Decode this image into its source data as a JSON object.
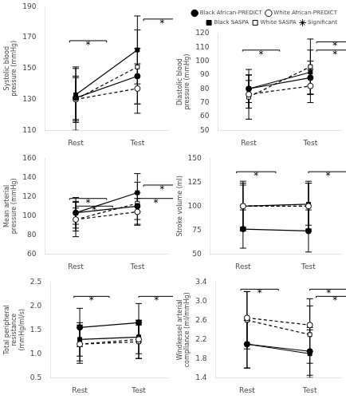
{
  "chart_data": [
    {
      "type": "line",
      "y_label": "Systolic blood pressure (mmHg)",
      "x": [
        0.1,
        0.6
      ],
      "xlim": [
        -0.15,
        0.85
      ],
      "xticks": [
        {
          "value": 0.1,
          "label": "Rest"
        },
        {
          "value": 0.6,
          "label": "Test"
        }
      ],
      "ylim": [
        110,
        190
      ],
      "yticks": [
        110,
        130,
        150,
        170,
        190
      ],
      "grid": false,
      "series": [
        {
          "name": "Black African-PREDICT",
          "values": [
            131,
            145
          ],
          "errors": [
            14,
            18
          ],
          "marker": "filled_circle",
          "line_style": "solid",
          "color": "black"
        },
        {
          "name": "White African-PREDICT",
          "values": [
            130,
            137
          ],
          "errors": [
            14,
            16
          ],
          "marker": "open_circle",
          "line_style": "dashed",
          "color": "black"
        },
        {
          "name": "Black SASPA",
          "values": [
            133,
            162
          ],
          "errors": [
            18,
            22
          ],
          "marker": "filled_square",
          "line_style": "solid",
          "color": "black"
        },
        {
          "name": "White SASPA",
          "values": [
            130,
            151
          ],
          "errors": [
            20,
            24
          ],
          "marker": "open_square",
          "line_style": "dashed",
          "color": "black"
        }
      ],
      "annotations": [
        {
          "x1": 0.05,
          "x2": 0.35,
          "y": 168,
          "text": "*"
        },
        {
          "x1": 0.65,
          "x2": 0.95,
          "y": 182,
          "text": "*"
        }
      ]
    },
    {
      "type": "line",
      "y_label": "Diastolic blood pressure (mmHg)",
      "x": [
        0.1,
        0.6
      ],
      "xlim": [
        -0.15,
        0.85
      ],
      "xticks": [
        {
          "value": 0.1,
          "label": "Rest"
        },
        {
          "value": 0.6,
          "label": "Test"
        }
      ],
      "ylim": [
        50,
        120
      ],
      "yticks": [
        50,
        60,
        70,
        80,
        90,
        100,
        110,
        120
      ],
      "grid": false,
      "legend": "top right",
      "series": [
        {
          "name": "Black African-PREDICT",
          "values": [
            80,
            88
          ],
          "errors": [
            10,
            12
          ],
          "marker": "filled_circle",
          "line_style": "solid",
          "color": "black"
        },
        {
          "name": "White African-PREDICT",
          "values": [
            76,
            82
          ],
          "errors": [
            10,
            12
          ],
          "marker": "open_circle",
          "line_style": "dashed",
          "color": "black"
        },
        {
          "name": "Black SASPA",
          "values": [
            80,
            92
          ],
          "errors": [
            14,
            16
          ],
          "marker": "filled_square",
          "line_style": "solid",
          "color": "black"
        },
        {
          "name": "White SASPA",
          "values": [
            74,
            96
          ],
          "errors": [
            16,
            20
          ],
          "marker": "open_square",
          "line_style": "dashed",
          "color": "black"
        },
        {
          "name": "Significant",
          "values": [
            null,
            null
          ],
          "marker": "star",
          "line_style": "none",
          "color": "black"
        }
      ],
      "annotations": [
        {
          "x1": 0.05,
          "x2": 0.35,
          "y": 108,
          "text": "*"
        },
        {
          "x1": 0.65,
          "x2": 0.95,
          "y": 114,
          "text": "*"
        },
        {
          "x1": 0.65,
          "x2": 0.95,
          "y": 108,
          "text": "*"
        }
      ]
    },
    {
      "type": "line",
      "y_label": "Mean arterial pressure (mmHg)",
      "x": [
        0.1,
        0.6
      ],
      "xlim": [
        -0.15,
        0.85
      ],
      "xticks": [
        {
          "value": 0.1,
          "label": "Rest"
        },
        {
          "value": 0.6,
          "label": "Test"
        }
      ],
      "ylim": [
        60,
        160
      ],
      "yticks": [
        60,
        80,
        100,
        120,
        140,
        160
      ],
      "grid": false,
      "series": [
        {
          "name": "Black African-PREDICT",
          "values": [
            103,
            110
          ],
          "errors": [
            12,
            14
          ],
          "marker": "filled_circle",
          "line_style": "solid",
          "color": "black"
        },
        {
          "name": "White African-PREDICT",
          "values": [
            96,
            104
          ],
          "errors": [
            12,
            14
          ],
          "marker": "open_circle",
          "line_style": "dashed",
          "color": "black"
        },
        {
          "name": "Black SASPA",
          "values": [
            103,
            124
          ],
          "errors": [
            16,
            20
          ],
          "marker": "filled_square",
          "line_style": "solid",
          "color": "black"
        },
        {
          "name": "White SASPA",
          "values": [
            96,
            113
          ],
          "errors": [
            18,
            22
          ],
          "marker": "open_square",
          "line_style": "dashed",
          "color": "black"
        }
      ],
      "annotations": [
        {
          "x1": 0.05,
          "x2": 0.35,
          "y": 118,
          "text": "*"
        },
        {
          "x1": 0.1,
          "x2": 0.4,
          "y": 110,
          "text": "*"
        },
        {
          "x1": 0.6,
          "x2": 0.9,
          "y": 118,
          "text": "*"
        },
        {
          "x1": 0.65,
          "x2": 0.95,
          "y": 132,
          "text": "*"
        }
      ]
    },
    {
      "type": "line",
      "y_label": "Stroke volume (ml)",
      "x": [
        0.1,
        0.6
      ],
      "xlim": [
        -0.15,
        0.85
      ],
      "xticks": [
        {
          "value": 0.1,
          "label": "Rest"
        },
        {
          "value": 0.6,
          "label": "Test"
        }
      ],
      "ylim": [
        50,
        150
      ],
      "yticks": [
        50,
        75,
        100,
        125,
        150
      ],
      "grid": false,
      "series": [
        {
          "name": "Black African-PREDICT",
          "values": [
            76,
            74
          ],
          "errors": [
            20,
            22
          ],
          "marker": "filled_circle",
          "line_style": "solid",
          "color": "black"
        },
        {
          "name": "White African-PREDICT",
          "values": [
            100,
            100
          ],
          "errors": [
            24,
            24
          ],
          "marker": "open_circle",
          "line_style": "dashed",
          "color": "black"
        },
        {
          "name": "Black SASPA",
          "values": [
            100,
            102
          ],
          "errors": [
            22,
            22
          ],
          "marker": "filled_square",
          "line_style": "solid",
          "color": "black"
        },
        {
          "name": "White SASPA",
          "values": [
            100,
            100
          ],
          "errors": [
            26,
            26
          ],
          "marker": "open_square",
          "line_style": "dashed",
          "color": "black"
        }
      ],
      "annotations": [
        {
          "x1": 0.05,
          "x2": 0.35,
          "y": 136,
          "text": "*"
        },
        {
          "x1": 0.6,
          "x2": 0.9,
          "y": 136,
          "text": "*"
        }
      ]
    },
    {
      "type": "line",
      "y_label": "Total peripheral resistance (mmHg/ml/s)",
      "x": [
        0.1,
        0.6
      ],
      "xlim": [
        -0.15,
        0.85
      ],
      "xticks": [
        {
          "value": 0.1,
          "label": "Rest"
        },
        {
          "value": 0.6,
          "label": "Test"
        }
      ],
      "ylim": [
        0.5,
        2.5
      ],
      "yticks": [
        0.5,
        {
          "value": 1,
          "label": "1.0"
        },
        1.5,
        {
          "value": 2,
          "label": "2.0"
        },
        2.5
      ],
      "grid": false,
      "series": [
        {
          "name": "Black African-PREDICT",
          "values": [
            1.55,
            1.65
          ],
          "errors": [
            0.4,
            0.4
          ],
          "marker": "filled_circle",
          "line_style": "solid",
          "color": "black"
        },
        {
          "name": "White African-PREDICT",
          "values": [
            1.2,
            1.3
          ],
          "errors": [
            0.4,
            0.4
          ],
          "marker": "open_circle",
          "line_style": "dashed",
          "color": "black"
        },
        {
          "name": "Black SASPA",
          "values": [
            1.3,
            1.35
          ],
          "errors": [
            0.35,
            0.35
          ],
          "marker": "filled_square",
          "line_style": "solid",
          "color": "black"
        },
        {
          "name": "White SASPA",
          "values": [
            1.2,
            1.25
          ],
          "errors": [
            0.35,
            0.35
          ],
          "marker": "open_square",
          "line_style": "dashed",
          "color": "black"
        }
      ],
      "annotations": [
        {
          "x1": 0.05,
          "x2": 0.35,
          "y": 2.2,
          "text": "*"
        },
        {
          "x1": 0.6,
          "x2": 0.9,
          "y": 2.2,
          "text": "*"
        }
      ]
    },
    {
      "type": "line",
      "y_label": "Windkessel arterial compliance (ml/mmHg)",
      "x": [
        0.1,
        0.6
      ],
      "xlim": [
        -0.15,
        0.85
      ],
      "xticks": [
        {
          "value": 0.1,
          "label": "Rest"
        },
        {
          "value": 0.6,
          "label": "Test"
        }
      ],
      "ylim": [
        1.4,
        3.4
      ],
      "yticks": [
        1.4,
        1.8,
        2.2,
        2.6,
        {
          "value": 3,
          "label": "3.0"
        },
        3.4
      ],
      "grid": false,
      "series": [
        {
          "name": "Black African-PREDICT",
          "values": [
            2.1,
            1.95
          ],
          "errors": [
            0.5,
            0.5
          ],
          "marker": "filled_circle",
          "line_style": "solid",
          "color": "black"
        },
        {
          "name": "White African-PREDICT",
          "values": [
            2.65,
            2.5
          ],
          "errors": [
            0.55,
            0.55
          ],
          "marker": "open_circle",
          "line_style": "dashed",
          "color": "black"
        },
        {
          "name": "Black SASPA",
          "values": [
            2.1,
            1.9
          ],
          "errors": [
            0.5,
            0.5
          ],
          "marker": "filled_square",
          "line_style": "solid",
          "color": "black"
        },
        {
          "name": "White SASPA",
          "values": [
            2.6,
            2.3
          ],
          "errors": [
            0.6,
            0.6
          ],
          "marker": "open_square",
          "line_style": "dashed",
          "color": "black"
        }
      ],
      "annotations": [
        {
          "x1": 0.05,
          "x2": 0.35,
          "y": 3.25,
          "text": "*"
        },
        {
          "x1": 0.6,
          "x2": 0.9,
          "y": 3.25,
          "text": "*"
        },
        {
          "x1": 0.65,
          "x2": 0.95,
          "y": 3.1,
          "text": "*"
        }
      ]
    }
  ]
}
